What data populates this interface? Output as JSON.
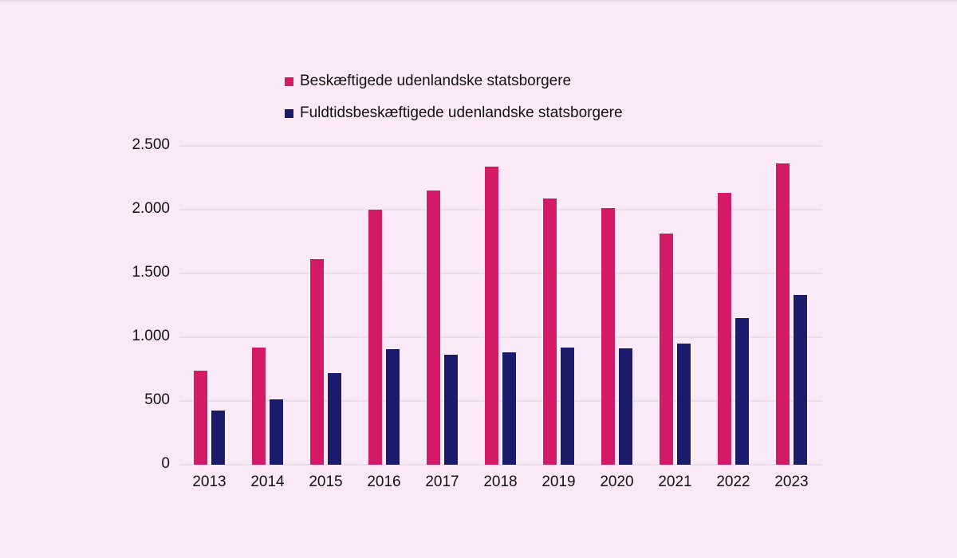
{
  "chart_data": {
    "type": "bar",
    "categories": [
      "2013",
      "2014",
      "2015",
      "2016",
      "2017",
      "2018",
      "2019",
      "2020",
      "2021",
      "2022",
      "2023"
    ],
    "series": [
      {
        "name": "Beskæftigede udenlandske statsborgere",
        "color": "#d41a66",
        "values": [
          735,
          920,
          1615,
          2000,
          2150,
          2340,
          2090,
          2015,
          1815,
          2130,
          2360
        ]
      },
      {
        "name": "Fuldtidsbeskæftigede udenlandske statsborgere",
        "color": "#1a1b6b",
        "values": [
          425,
          515,
          720,
          905,
          860,
          880,
          920,
          910,
          950,
          1150,
          1330
        ]
      }
    ],
    "title": "",
    "xlabel": "",
    "ylabel": "",
    "ylim": [
      0,
      2500
    ],
    "yticks": [
      0,
      500,
      1000,
      1500,
      2000,
      2500
    ],
    "ytick_labels": [
      "0",
      "500",
      "1.000",
      "1.500",
      "2.000",
      "2.500"
    ],
    "grid": true,
    "legend_position": "top-left"
  },
  "colors": {
    "background": "#fce9f7",
    "gridline": "#e8dee8",
    "text": "#111111",
    "series_pink": "#d41a66",
    "series_navy": "#1a1b6b"
  }
}
